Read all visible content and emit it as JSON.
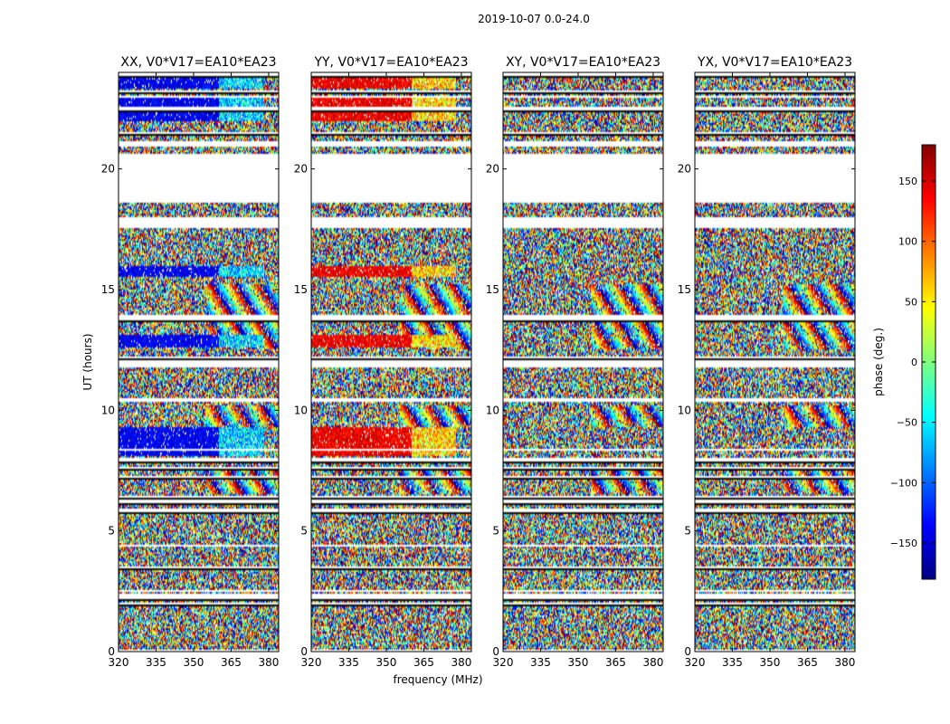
{
  "figure": {
    "suptitle": "2019-10-07 0.0-24.0",
    "xlabel": "frequency (MHz)",
    "ylabel": "UT (hours)"
  },
  "chart_data": {
    "type": "heatmap",
    "x_range": [
      320,
      384
    ],
    "y_range": [
      0,
      24
    ],
    "xticks": [
      320,
      335,
      350,
      365,
      380
    ],
    "yticks": [
      0,
      5,
      10,
      15,
      20
    ],
    "colormap": "jet",
    "colors": {
      "jet_low": "#00007f",
      "jet_mid": "#7fff7f",
      "jet_high": "#7f0000",
      "flag": "#ffffff"
    },
    "colorbar": {
      "label": "phase (deg.)",
      "range": [
        -180,
        180
      ],
      "ticks": [
        150,
        100,
        50,
        0,
        -50,
        -100,
        -150
      ],
      "tick_labels": [
        "150",
        "100",
        "50",
        "0",
        "−50",
        "−100",
        "−150"
      ]
    },
    "panels": [
      {
        "title": "XX, V0*V17=EA10*EA23",
        "coherent_phase": -140,
        "coherent_alt": -60
      },
      {
        "title": "YY, V0*V17=EA10*EA23",
        "coherent_phase": 140,
        "coherent_alt": 60
      },
      {
        "title": "XY, V0*V17=EA10*EA23",
        "coherent_phase": null,
        "coherent_alt": null
      },
      {
        "title": "YX, V0*V17=EA10*EA23",
        "coherent_phase": null,
        "coherent_alt": null
      }
    ],
    "flagged_ut_ranges": [
      [
        18.6,
        20.6
      ],
      [
        17.55,
        18.0
      ],
      [
        11.8,
        12.0
      ],
      [
        13.75,
        13.95
      ],
      [
        10.35,
        10.5
      ],
      [
        6.15,
        6.3
      ],
      [
        5.8,
        5.95
      ],
      [
        7.9,
        8.0
      ],
      [
        2.25,
        2.4
      ],
      [
        1.95,
        2.05
      ],
      [
        3.45,
        3.55
      ],
      [
        4.35,
        4.45
      ],
      [
        21.0,
        21.15
      ],
      [
        22.45,
        22.6
      ]
    ],
    "coherent_ut_ranges": [
      [
        22.0,
        23.0
      ],
      [
        15.5,
        15.95
      ],
      [
        11.9,
        12.1
      ],
      [
        12.6,
        13.1
      ],
      [
        8.1,
        9.3
      ],
      [
        23.3,
        23.9
      ]
    ]
  }
}
